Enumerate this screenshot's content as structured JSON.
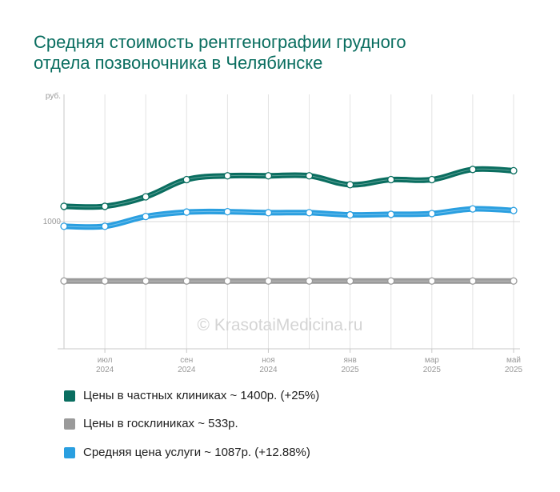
{
  "title": {
    "line1": "Средняя стоимость рентгенографии грудного",
    "line2": "отдела позвоночника в Челябинске"
  },
  "watermark": "© KrasotaiMedicina.ru",
  "chart_data": {
    "type": "line",
    "ylabel": "руб.",
    "ylim": [
      0,
      2000
    ],
    "yticks": [
      {
        "value": 1000,
        "label": "1000"
      }
    ],
    "grid": true,
    "legend_position": "bottom",
    "x_tick_labels": [
      {
        "index": 1,
        "line1": "июл",
        "line2": "2024"
      },
      {
        "index": 3,
        "line1": "сен",
        "line2": "2024"
      },
      {
        "index": 5,
        "line1": "ноя",
        "line2": "2024"
      },
      {
        "index": 7,
        "line1": "янв",
        "line2": "2025"
      },
      {
        "index": 9,
        "line1": "мар",
        "line2": "2025"
      },
      {
        "index": 11,
        "line1": "май",
        "line2": "2025"
      }
    ],
    "series": [
      {
        "name": "Цены в частных клиниках ~ 1400р. (+25%)",
        "color": "#0a6e60",
        "values": [
          1120,
          1120,
          1195,
          1330,
          1360,
          1360,
          1360,
          1290,
          1330,
          1330,
          1410,
          1400
        ]
      },
      {
        "name": "Цены в госклиниках ~ 533р.",
        "color": "#9a9a9a",
        "values": [
          533,
          533,
          533,
          533,
          533,
          533,
          533,
          533,
          533,
          533,
          533,
          533
        ]
      },
      {
        "name": "Средняя цена услуги ~ 1087р. (+12.88%)",
        "color": "#2a9fe0",
        "values": [
          963,
          963,
          1040,
          1075,
          1078,
          1070,
          1070,
          1053,
          1057,
          1063,
          1100,
          1087
        ]
      }
    ]
  }
}
